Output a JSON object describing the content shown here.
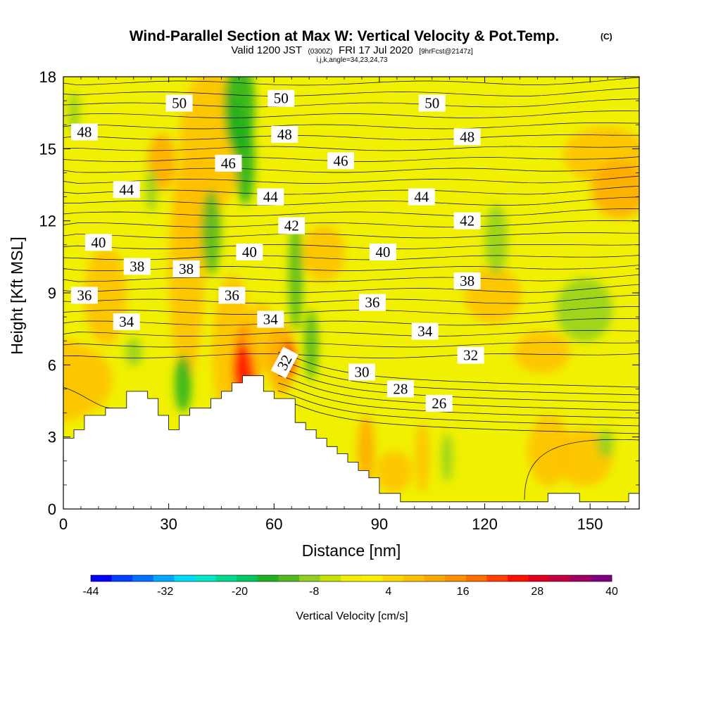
{
  "title": {
    "main": "Wind-Parallel Section at Max W: Vertical Velocity & Pot.Temp.",
    "mark": "(C)",
    "valid_pre": "Valid 1200 JST",
    "valid_utc": "(0300Z)",
    "valid_date": "FRI 17 Jul 2020",
    "fcst": "[9hrFcst@2147z]",
    "indices": "i,j,k,angle=34,23,24,73"
  },
  "chart_data": {
    "type": "heatmap",
    "xlabel": "Distance [nm]",
    "ylabel": "Height [Kft MSL]",
    "xlim": [
      0,
      164
    ],
    "ylim": [
      0,
      18
    ],
    "xticks": [
      0,
      30,
      60,
      90,
      120,
      150
    ],
    "yticks": [
      0,
      3,
      6,
      9,
      12,
      15,
      18
    ],
    "colorbar": {
      "label": "Vertical Velocity [cm/s]",
      "tick_values": [
        -44,
        -32,
        -20,
        -8,
        4,
        16,
        28,
        40
      ],
      "colors": [
        "#0000ff",
        "#0040ff",
        "#0070ff",
        "#00a8ff",
        "#00d8ff",
        "#00e8c8",
        "#00d890",
        "#00c860",
        "#20b020",
        "#50b820",
        "#90d020",
        "#c8e000",
        "#f0f000",
        "#fff000",
        "#ffd800",
        "#ffc000",
        "#ffa800",
        "#ff9000",
        "#ff7000",
        "#ff4000",
        "#ff1000",
        "#e00020",
        "#c00040",
        "#a00060",
        "#800080"
      ]
    },
    "theta_contour_labels": [
      {
        "value": "50",
        "x": 33,
        "y": 16.9
      },
      {
        "value": "50",
        "x": 62,
        "y": 17.1
      },
      {
        "value": "50",
        "x": 105,
        "y": 16.9
      },
      {
        "value": "48",
        "x": 6,
        "y": 15.7
      },
      {
        "value": "48",
        "x": 63,
        "y": 15.6
      },
      {
        "value": "48",
        "x": 115,
        "y": 15.5
      },
      {
        "value": "46",
        "x": 47,
        "y": 14.4
      },
      {
        "value": "46",
        "x": 79,
        "y": 14.5
      },
      {
        "value": "44",
        "x": 18,
        "y": 13.3
      },
      {
        "value": "44",
        "x": 59,
        "y": 13.0
      },
      {
        "value": "44",
        "x": 102,
        "y": 13.0
      },
      {
        "value": "42",
        "x": 65,
        "y": 11.8
      },
      {
        "value": "42",
        "x": 115,
        "y": 12.0
      },
      {
        "value": "40",
        "x": 10,
        "y": 11.1
      },
      {
        "value": "40",
        "x": 53,
        "y": 10.7
      },
      {
        "value": "40",
        "x": 91,
        "y": 10.7
      },
      {
        "value": "38",
        "x": 21,
        "y": 10.1
      },
      {
        "value": "38",
        "x": 35,
        "y": 10.0
      },
      {
        "value": "38",
        "x": 115,
        "y": 9.5
      },
      {
        "value": "36",
        "x": 6,
        "y": 8.9
      },
      {
        "value": "36",
        "x": 48,
        "y": 8.9
      },
      {
        "value": "36",
        "x": 88,
        "y": 8.6
      },
      {
        "value": "34",
        "x": 18,
        "y": 7.8
      },
      {
        "value": "34",
        "x": 59,
        "y": 7.9
      },
      {
        "value": "34",
        "x": 103,
        "y": 7.4
      },
      {
        "value": "32",
        "x": 116,
        "y": 6.4
      },
      {
        "value": "32",
        "x": 63,
        "y": 6.1
      },
      {
        "value": "30",
        "x": 85,
        "y": 5.7
      },
      {
        "value": "28",
        "x": 96,
        "y": 5.0
      },
      {
        "value": "26",
        "x": 107,
        "y": 4.4
      }
    ],
    "terrain": [
      {
        "x": 0,
        "y": 2.95
      },
      {
        "x": 3,
        "y": 2.95
      },
      {
        "x": 3,
        "y": 3.3
      },
      {
        "x": 6,
        "y": 3.3
      },
      {
        "x": 6,
        "y": 3.9
      },
      {
        "x": 12,
        "y": 3.9
      },
      {
        "x": 12,
        "y": 4.2
      },
      {
        "x": 18,
        "y": 4.2
      },
      {
        "x": 18,
        "y": 4.9
      },
      {
        "x": 24,
        "y": 4.9
      },
      {
        "x": 24,
        "y": 4.6
      },
      {
        "x": 27,
        "y": 4.6
      },
      {
        "x": 27,
        "y": 3.9
      },
      {
        "x": 30,
        "y": 3.9
      },
      {
        "x": 30,
        "y": 3.3
      },
      {
        "x": 33,
        "y": 3.3
      },
      {
        "x": 33,
        "y": 3.9
      },
      {
        "x": 36,
        "y": 3.9
      },
      {
        "x": 36,
        "y": 4.2
      },
      {
        "x": 42,
        "y": 4.2
      },
      {
        "x": 42,
        "y": 4.6
      },
      {
        "x": 45,
        "y": 4.6
      },
      {
        "x": 45,
        "y": 4.9
      },
      {
        "x": 48,
        "y": 4.9
      },
      {
        "x": 48,
        "y": 5.25
      },
      {
        "x": 51,
        "y": 5.25
      },
      {
        "x": 51,
        "y": 5.55
      },
      {
        "x": 57,
        "y": 5.55
      },
      {
        "x": 57,
        "y": 4.9
      },
      {
        "x": 60,
        "y": 4.9
      },
      {
        "x": 60,
        "y": 4.6
      },
      {
        "x": 66,
        "y": 4.6
      },
      {
        "x": 66,
        "y": 3.6
      },
      {
        "x": 69,
        "y": 3.6
      },
      {
        "x": 69,
        "y": 3.3
      },
      {
        "x": 72,
        "y": 3.3
      },
      {
        "x": 72,
        "y": 2.95
      },
      {
        "x": 75,
        "y": 2.95
      },
      {
        "x": 75,
        "y": 2.6
      },
      {
        "x": 78,
        "y": 2.6
      },
      {
        "x": 78,
        "y": 2.3
      },
      {
        "x": 81,
        "y": 2.3
      },
      {
        "x": 81,
        "y": 1.95
      },
      {
        "x": 84,
        "y": 1.95
      },
      {
        "x": 84,
        "y": 1.6
      },
      {
        "x": 87,
        "y": 1.6
      },
      {
        "x": 87,
        "y": 1.3
      },
      {
        "x": 90,
        "y": 1.3
      },
      {
        "x": 90,
        "y": 0.65
      },
      {
        "x": 96,
        "y": 0.65
      },
      {
        "x": 96,
        "y": 0.3
      },
      {
        "x": 138,
        "y": 0.3
      },
      {
        "x": 138,
        "y": 0.65
      },
      {
        "x": 147,
        "y": 0.65
      },
      {
        "x": 147,
        "y": 0.3
      },
      {
        "x": 161,
        "y": 0.3
      },
      {
        "x": 161,
        "y": 0.65
      },
      {
        "x": 164,
        "y": 0.65
      }
    ]
  },
  "colors": {
    "background": "#f0f000",
    "updraft_orange": "#ffc000",
    "updraft_red": "#ff1000",
    "downdraft_green": "#20b020",
    "terrain_fill": "#ffffff"
  }
}
